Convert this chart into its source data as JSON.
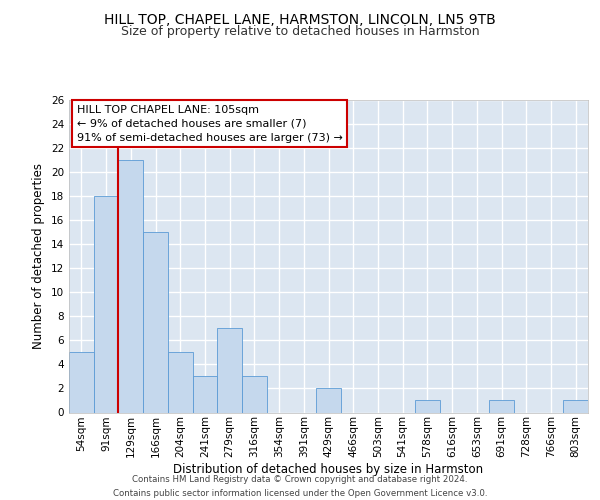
{
  "title_line1": "HILL TOP, CHAPEL LANE, HARMSTON, LINCOLN, LN5 9TB",
  "title_line2": "Size of property relative to detached houses in Harmston",
  "xlabel": "Distribution of detached houses by size in Harmston",
  "ylabel": "Number of detached properties",
  "categories": [
    "54sqm",
    "91sqm",
    "129sqm",
    "166sqm",
    "204sqm",
    "241sqm",
    "279sqm",
    "316sqm",
    "354sqm",
    "391sqm",
    "429sqm",
    "466sqm",
    "503sqm",
    "541sqm",
    "578sqm",
    "616sqm",
    "653sqm",
    "691sqm",
    "728sqm",
    "766sqm",
    "803sqm"
  ],
  "values": [
    5,
    18,
    21,
    15,
    5,
    3,
    7,
    3,
    0,
    0,
    2,
    0,
    0,
    0,
    1,
    0,
    0,
    1,
    0,
    0,
    1
  ],
  "bar_color": "#c5d8ed",
  "bar_edge_color": "#5b9bd5",
  "background_color": "#dce6f1",
  "grid_color": "#ffffff",
  "vline_x": 1.5,
  "vline_color": "#cc0000",
  "annotation_text": "HILL TOP CHAPEL LANE: 105sqm\n← 9% of detached houses are smaller (7)\n91% of semi-detached houses are larger (73) →",
  "annotation_box_color": "#ffffff",
  "annotation_box_edge": "#cc0000",
  "ylim": [
    0,
    26
  ],
  "yticks": [
    0,
    2,
    4,
    6,
    8,
    10,
    12,
    14,
    16,
    18,
    20,
    22,
    24,
    26
  ],
  "footer_text": "Contains HM Land Registry data © Crown copyright and database right 2024.\nContains public sector information licensed under the Open Government Licence v3.0.",
  "title_fontsize": 10,
  "subtitle_fontsize": 9,
  "tick_fontsize": 7.5,
  "label_fontsize": 8.5,
  "annotation_fontsize": 8
}
